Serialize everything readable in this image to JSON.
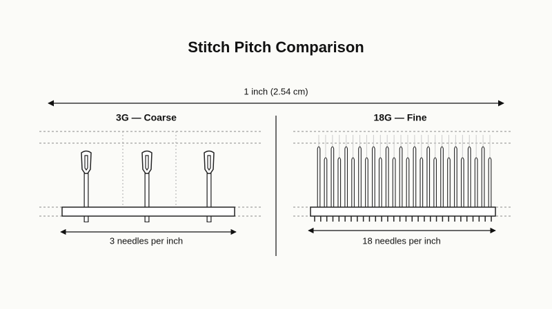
{
  "title": "Stitch Pitch Comparison",
  "span_label": "1 inch (2.54 cm)",
  "left_panel": {
    "title": "3G — Coarse",
    "caption": "3 needles per inch"
  },
  "right_panel": {
    "title": "18G — Fine",
    "caption": "18 needles per inch"
  }
}
